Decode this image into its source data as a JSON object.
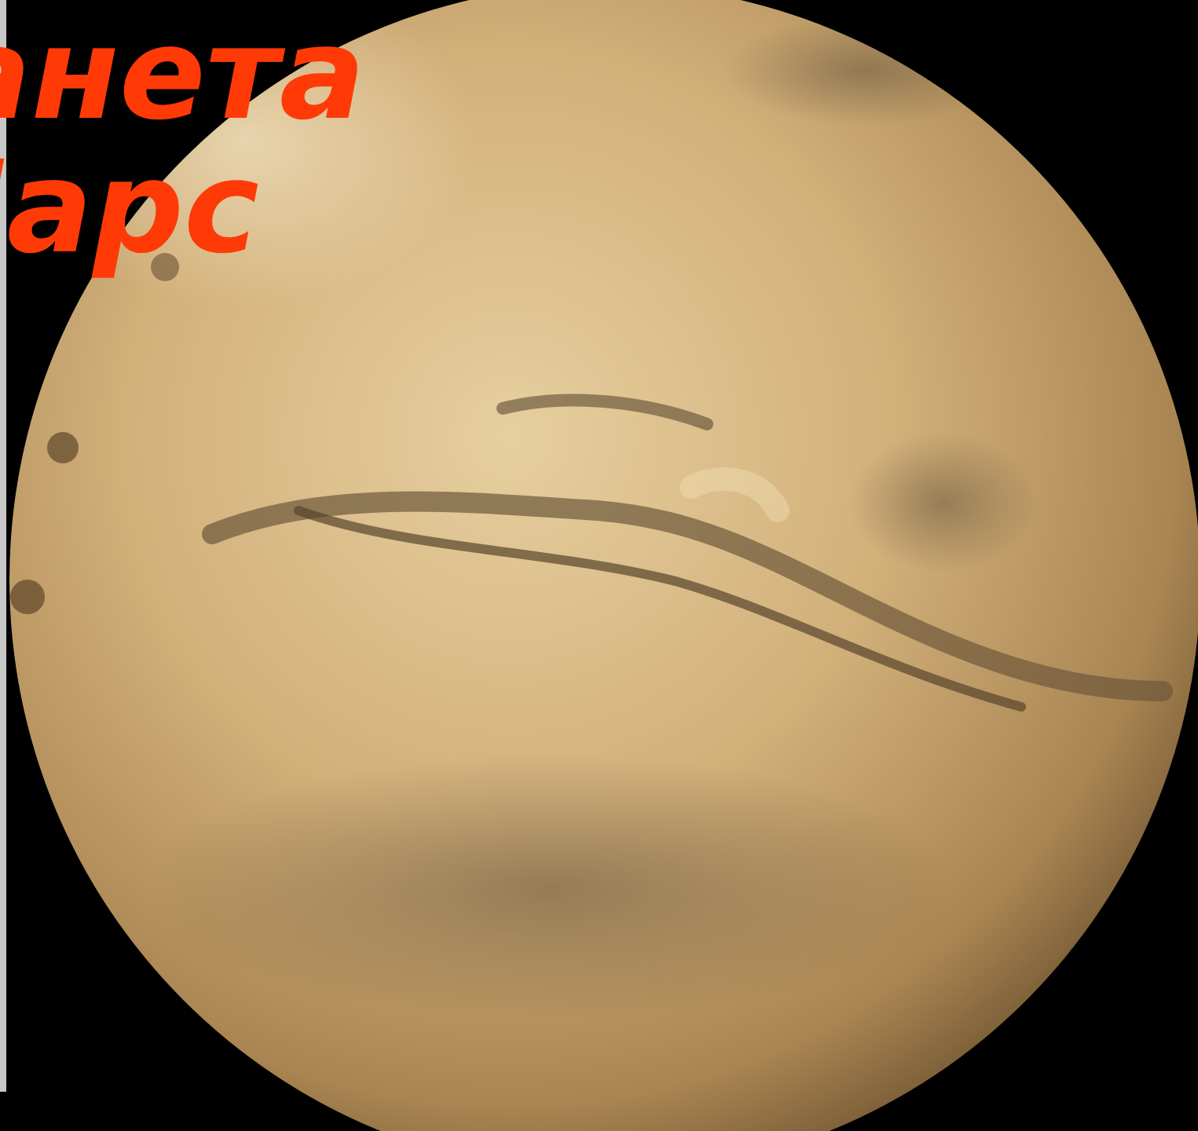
{
  "slide": {
    "title_lines": [
      "Планета",
      "Марс"
    ]
  }
}
